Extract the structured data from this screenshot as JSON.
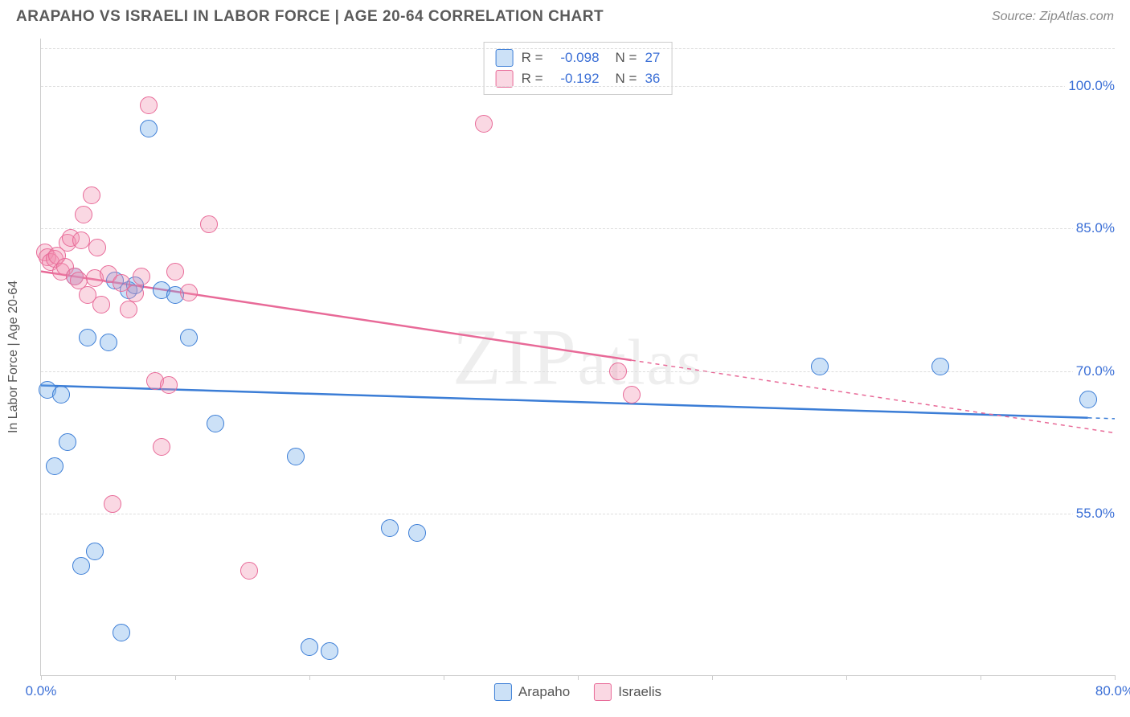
{
  "header": {
    "title": "ARAPAHO VS ISRAELI IN LABOR FORCE | AGE 20-64 CORRELATION CHART",
    "source": "Source: ZipAtlas.com"
  },
  "watermark": "ZIPatlas",
  "chart": {
    "type": "scatter",
    "ylabel": "In Labor Force | Age 20-64",
    "xlim": [
      0,
      80
    ],
    "ylim": [
      38,
      105
    ],
    "yticks": [
      {
        "v": 55,
        "label": "55.0%"
      },
      {
        "v": 70,
        "label": "70.0%"
      },
      {
        "v": 85,
        "label": "85.0%"
      },
      {
        "v": 100,
        "label": "100.0%"
      }
    ],
    "extra_gridlines": [
      104
    ],
    "xtick_positions": [
      0,
      10,
      20,
      30,
      40,
      50,
      60,
      70,
      80
    ],
    "xtick_labels": {
      "0": "0.0%",
      "80": "80.0%"
    },
    "background_color": "#ffffff",
    "grid_color": "#dddddd",
    "point_radius": 11,
    "point_opacity": 0.55,
    "line_width": 2.5,
    "series": {
      "arapaho": {
        "label": "Arapaho",
        "color": "#6ea8e8",
        "border": "#3b7dd6",
        "fill": "rgba(110,168,232,0.35)",
        "trend": {
          "x1": 0,
          "y1": 68.5,
          "x2": 80,
          "y2": 65.0,
          "solid_until_x": 78
        },
        "points": [
          [
            0.5,
            68.0
          ],
          [
            1.0,
            60.0
          ],
          [
            1.5,
            67.5
          ],
          [
            2.0,
            62.5
          ],
          [
            2.5,
            80.0
          ],
          [
            3.0,
            49.5
          ],
          [
            3.5,
            73.5
          ],
          [
            4.0,
            51.0
          ],
          [
            5.0,
            73.0
          ],
          [
            5.5,
            79.5
          ],
          [
            6.0,
            42.5
          ],
          [
            6.5,
            78.5
          ],
          [
            7.0,
            79.0
          ],
          [
            8.0,
            95.5
          ],
          [
            9.0,
            78.5
          ],
          [
            10.0,
            78.0
          ],
          [
            11.0,
            73.5
          ],
          [
            13.0,
            64.5
          ],
          [
            19.0,
            61.0
          ],
          [
            20.0,
            41.0
          ],
          [
            21.5,
            40.5
          ],
          [
            26.0,
            53.5
          ],
          [
            28.0,
            53.0
          ],
          [
            58.0,
            70.5
          ],
          [
            67.0,
            70.5
          ],
          [
            78.0,
            67.0
          ]
        ]
      },
      "israelis": {
        "label": "Israelis",
        "color": "#f08fb0",
        "border": "#e86a98",
        "fill": "rgba(240,143,176,0.35)",
        "trend": {
          "x1": 0,
          "y1": 80.5,
          "x2": 80,
          "y2": 63.5,
          "solid_until_x": 44
        },
        "points": [
          [
            0.3,
            82.5
          ],
          [
            0.5,
            82.0
          ],
          [
            0.7,
            81.5
          ],
          [
            1.0,
            81.8
          ],
          [
            1.2,
            82.2
          ],
          [
            1.5,
            80.5
          ],
          [
            1.8,
            81.0
          ],
          [
            2.0,
            83.5
          ],
          [
            2.2,
            84.0
          ],
          [
            2.5,
            80.0
          ],
          [
            2.8,
            79.5
          ],
          [
            3.0,
            83.8
          ],
          [
            3.2,
            86.5
          ],
          [
            3.5,
            78.0
          ],
          [
            3.8,
            88.5
          ],
          [
            4.0,
            79.8
          ],
          [
            4.2,
            83.0
          ],
          [
            4.5,
            77.0
          ],
          [
            5.0,
            80.2
          ],
          [
            5.3,
            56.0
          ],
          [
            6.0,
            79.3
          ],
          [
            6.5,
            76.5
          ],
          [
            7.0,
            78.2
          ],
          [
            7.5,
            80.0
          ],
          [
            8.0,
            98.0
          ],
          [
            8.5,
            69.0
          ],
          [
            9.0,
            62.0
          ],
          [
            9.5,
            68.5
          ],
          [
            10.0,
            80.5
          ],
          [
            11.0,
            78.3
          ],
          [
            12.5,
            85.5
          ],
          [
            15.5,
            49.0
          ],
          [
            33.0,
            96.0
          ],
          [
            43.0,
            70.0
          ],
          [
            44.0,
            67.5
          ]
        ]
      }
    },
    "stats": [
      {
        "series": "arapaho",
        "R": "-0.098",
        "N": "27"
      },
      {
        "series": "israelis",
        "R": "-0.192",
        "N": "36"
      }
    ]
  }
}
